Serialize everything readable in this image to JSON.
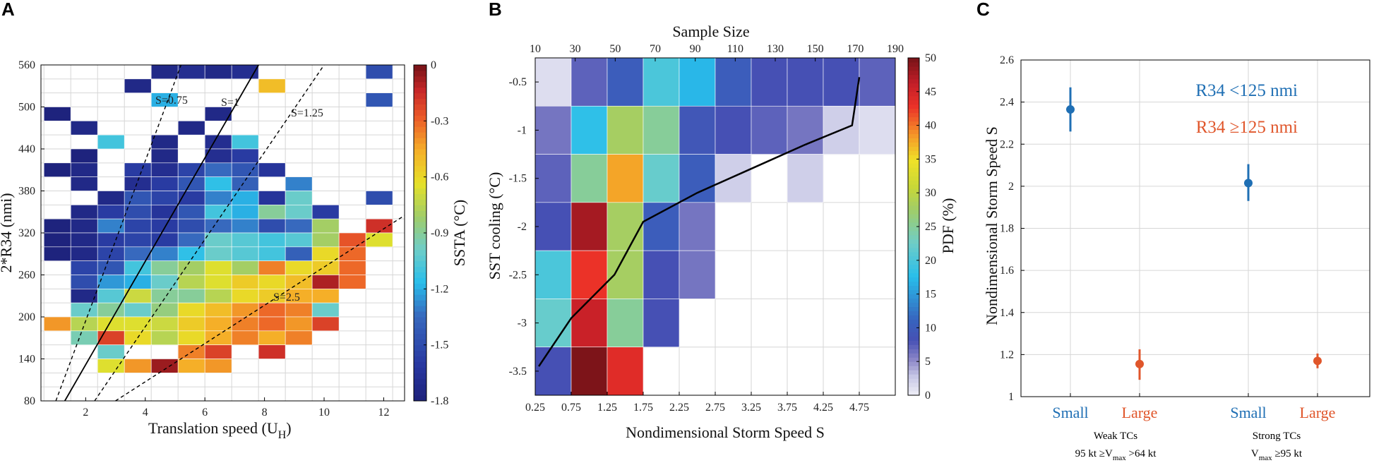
{
  "panels": {
    "a": {
      "letter": "A",
      "chart_data": {
        "type": "heatmap",
        "xlabel": "Translation speed (U",
        "xlabel_sub": "H",
        "xlabel_end": ")",
        "ylabel": "2*R34 (nmi)",
        "xlim": [
          0.5,
          12.7
        ],
        "ylim": [
          80,
          560
        ],
        "xticks": [
          2,
          4,
          6,
          8,
          10,
          12
        ],
        "yticks": [
          80,
          140,
          200,
          260,
          320,
          380,
          440,
          500,
          560
        ],
        "x_bin_width": 0.9,
        "x_bin_start": 0.6,
        "y_bin_height": 20,
        "colorbar": {
          "label": "SSTA (°C)",
          "ticks": [
            0,
            -0.3,
            -0.6,
            -0.9,
            -1.2,
            -1.5,
            -1.8
          ],
          "tick_labels": [
            "0",
            "-0.3",
            "-0.6",
            "-0.9",
            "-1.2",
            "-1.5",
            "-1.8"
          ],
          "range": [
            -1.8,
            0
          ]
        },
        "line_labels": [
          "S=0.75",
          "S=1",
          "S=1.25",
          "S=2.5"
        ],
        "cells": [
          [
            4,
            540,
            -1.75
          ],
          [
            5,
            540,
            -1.7
          ],
          [
            6,
            540,
            -1.75
          ],
          [
            7,
            540,
            -1.7
          ],
          [
            12,
            540,
            -1.5
          ],
          [
            3,
            520,
            -1.75
          ],
          [
            8,
            520,
            -0.5
          ],
          [
            4,
            500,
            -1.2
          ],
          [
            12,
            500,
            -1.45
          ],
          [
            0,
            480,
            -1.8
          ],
          [
            6,
            480,
            -1.75
          ],
          [
            1,
            460,
            -1.75
          ],
          [
            5,
            460,
            -1.75
          ],
          [
            2,
            440,
            -1.1
          ],
          [
            4,
            440,
            -1.75
          ],
          [
            6,
            440,
            -1.7
          ],
          [
            7,
            440,
            -1.1
          ],
          [
            1,
            420,
            -1.8
          ],
          [
            4,
            420,
            -1.75
          ],
          [
            6,
            420,
            -1.7
          ],
          [
            7,
            420,
            -1.6
          ],
          [
            0,
            400,
            -1.8
          ],
          [
            1,
            400,
            -1.75
          ],
          [
            3,
            400,
            -1.6
          ],
          [
            4,
            400,
            -1.7
          ],
          [
            5,
            400,
            -1.55
          ],
          [
            6,
            400,
            -1.35
          ],
          [
            7,
            400,
            -1.45
          ],
          [
            8,
            400,
            -1.65
          ],
          [
            1,
            380,
            -1.75
          ],
          [
            3,
            380,
            -1.7
          ],
          [
            4,
            380,
            -1.6
          ],
          [
            5,
            380,
            -1.45
          ],
          [
            6,
            380,
            -1.15
          ],
          [
            7,
            380,
            -1.4
          ],
          [
            9,
            380,
            -1.3
          ],
          [
            2,
            360,
            -1.75
          ],
          [
            3,
            360,
            -1.45
          ],
          [
            4,
            360,
            -1.55
          ],
          [
            5,
            360,
            -1.6
          ],
          [
            6,
            360,
            -1.3
          ],
          [
            7,
            360,
            -1.2
          ],
          [
            8,
            360,
            -1.65
          ],
          [
            9,
            360,
            -1.0
          ],
          [
            12,
            360,
            -1.5
          ],
          [
            1,
            340,
            -1.75
          ],
          [
            2,
            340,
            -1.6
          ],
          [
            3,
            340,
            -1.5
          ],
          [
            4,
            340,
            -1.65
          ],
          [
            5,
            340,
            -1.45
          ],
          [
            6,
            340,
            -1.1
          ],
          [
            7,
            340,
            -1.2
          ],
          [
            8,
            340,
            -0.9
          ],
          [
            9,
            340,
            -1.0
          ],
          [
            10,
            340,
            -1.6
          ],
          [
            0,
            320,
            -1.8
          ],
          [
            1,
            320,
            -1.75
          ],
          [
            2,
            320,
            -1.3
          ],
          [
            3,
            320,
            -1.55
          ],
          [
            4,
            320,
            -1.6
          ],
          [
            5,
            320,
            -1.5
          ],
          [
            6,
            320,
            -1.35
          ],
          [
            7,
            320,
            -1.3
          ],
          [
            8,
            320,
            -1.5
          ],
          [
            9,
            320,
            -1.35
          ],
          [
            10,
            320,
            -0.8
          ],
          [
            12,
            320,
            -0.15
          ],
          [
            0,
            300,
            -1.8
          ],
          [
            1,
            300,
            -1.75
          ],
          [
            2,
            300,
            -1.6
          ],
          [
            3,
            300,
            -1.55
          ],
          [
            4,
            300,
            -1.6
          ],
          [
            5,
            300,
            -1.35
          ],
          [
            6,
            300,
            -1.0
          ],
          [
            7,
            300,
            -1.05
          ],
          [
            8,
            300,
            -1.1
          ],
          [
            9,
            300,
            -1.05
          ],
          [
            10,
            300,
            -0.8
          ],
          [
            11,
            300,
            -0.25
          ],
          [
            12,
            300,
            -0.65
          ],
          [
            0,
            280,
            -1.8
          ],
          [
            1,
            280,
            -1.75
          ],
          [
            2,
            280,
            -1.55
          ],
          [
            3,
            280,
            -1.35
          ],
          [
            4,
            280,
            -1.3
          ],
          [
            5,
            280,
            -1.15
          ],
          [
            6,
            280,
            -1.0
          ],
          [
            7,
            280,
            -1.05
          ],
          [
            8,
            280,
            -1.1
          ],
          [
            9,
            280,
            -1.4
          ],
          [
            10,
            280,
            -0.6
          ],
          [
            11,
            280,
            -0.3
          ],
          [
            1,
            260,
            -1.55
          ],
          [
            2,
            260,
            -1.45
          ],
          [
            3,
            260,
            -1.1
          ],
          [
            4,
            260,
            -0.9
          ],
          [
            5,
            260,
            -0.8
          ],
          [
            6,
            260,
            -0.65
          ],
          [
            7,
            260,
            -0.8
          ],
          [
            8,
            260,
            -0.35
          ],
          [
            9,
            260,
            -0.6
          ],
          [
            10,
            260,
            -0.55
          ],
          [
            11,
            260,
            -0.3
          ],
          [
            1,
            240,
            -1.5
          ],
          [
            2,
            240,
            -1.25
          ],
          [
            3,
            240,
            -1.2
          ],
          [
            4,
            240,
            -1.0
          ],
          [
            5,
            240,
            -0.75
          ],
          [
            6,
            240,
            -0.65
          ],
          [
            7,
            240,
            -0.55
          ],
          [
            8,
            240,
            -0.6
          ],
          [
            9,
            240,
            -0.5
          ],
          [
            10,
            240,
            -0.08
          ],
          [
            11,
            240,
            -0.3
          ],
          [
            1,
            220,
            -1.75
          ],
          [
            2,
            220,
            -1.05
          ],
          [
            3,
            220,
            -0.7
          ],
          [
            4,
            220,
            -0.9
          ],
          [
            5,
            220,
            -0.9
          ],
          [
            6,
            220,
            -0.75
          ],
          [
            7,
            220,
            -0.6
          ],
          [
            8,
            220,
            -0.55
          ],
          [
            9,
            220,
            -0.45
          ],
          [
            10,
            220,
            -0.45
          ],
          [
            1,
            200,
            -1.0
          ],
          [
            2,
            200,
            -0.9
          ],
          [
            3,
            200,
            -1.0
          ],
          [
            4,
            200,
            -0.85
          ],
          [
            5,
            200,
            -0.6
          ],
          [
            6,
            200,
            -0.5
          ],
          [
            7,
            200,
            -0.4
          ],
          [
            8,
            200,
            -0.3
          ],
          [
            9,
            200,
            -0.35
          ],
          [
            10,
            200,
            -1.0
          ],
          [
            0,
            180,
            -0.4
          ],
          [
            1,
            180,
            -0.75
          ],
          [
            2,
            180,
            -0.65
          ],
          [
            3,
            180,
            -0.65
          ],
          [
            4,
            180,
            -0.7
          ],
          [
            5,
            180,
            -0.55
          ],
          [
            6,
            180,
            -0.45
          ],
          [
            7,
            180,
            -0.35
          ],
          [
            8,
            180,
            -0.3
          ],
          [
            9,
            180,
            -0.4
          ],
          [
            10,
            180,
            -0.2
          ],
          [
            1,
            160,
            -0.95
          ],
          [
            2,
            160,
            -0.2
          ],
          [
            3,
            160,
            -0.6
          ],
          [
            4,
            160,
            -0.75
          ],
          [
            5,
            160,
            -0.6
          ],
          [
            6,
            160,
            -0.45
          ],
          [
            7,
            160,
            -0.35
          ],
          [
            8,
            160,
            -0.45
          ],
          [
            9,
            160,
            -0.35
          ],
          [
            2,
            140,
            -1.0
          ],
          [
            5,
            140,
            -0.35
          ],
          [
            6,
            140,
            -0.2
          ],
          [
            8,
            140,
            -0.15
          ],
          [
            2,
            120,
            -0.65
          ],
          [
            3,
            120,
            -0.4
          ],
          [
            4,
            120,
            -0.05
          ],
          [
            5,
            120,
            -0.45
          ],
          [
            6,
            120,
            -0.4
          ]
        ]
      }
    },
    "b": {
      "letter": "B",
      "chart_data": {
        "type": "heatmap",
        "title_top": "Sample Size",
        "xlabel": "Nondimensional Storm Speed S",
        "ylabel": "SST cooling (°C)",
        "x_categories": [
          "0.25",
          "0.75",
          "1.25",
          "1.75",
          "2.25",
          "2.75",
          "3.25",
          "3.75",
          "4.25",
          "4.75"
        ],
        "y_categories": [
          "-0.5",
          "-1",
          "-1.5",
          "-2",
          "-2.5",
          "-3",
          "-3.5"
        ],
        "top_ticks": [
          "10",
          "30",
          "50",
          "70",
          "90",
          "110",
          "130",
          "150",
          "170",
          "190"
        ],
        "colorbar": {
          "label": "PDF (%)",
          "ticks": [
            0,
            5,
            10,
            15,
            20,
            25,
            30,
            35,
            40,
            45,
            50
          ],
          "tick_labels": [
            "0",
            "5",
            "10",
            "15",
            "20",
            "25",
            "30",
            "35",
            "40",
            "45",
            "50"
          ],
          "range": [
            0,
            50
          ]
        },
        "pdf_grid": [
          [
            1,
            7,
            10,
            20,
            17,
            10,
            8,
            8,
            8,
            7
          ],
          [
            6,
            18,
            28,
            25,
            9,
            8,
            7,
            6,
            2,
            1
          ],
          [
            7,
            25,
            38,
            22,
            10,
            2,
            0,
            2,
            0,
            0
          ],
          [
            8,
            48,
            28,
            10,
            6,
            0,
            0,
            0,
            0,
            0
          ],
          [
            20,
            43,
            28,
            8,
            6,
            0,
            0,
            0,
            0,
            0
          ],
          [
            22,
            46,
            25,
            8,
            0,
            0,
            0,
            0,
            0,
            0
          ],
          [
            8,
            50,
            44,
            0,
            0,
            0,
            0,
            0,
            0,
            0
          ]
        ],
        "mean_line": {
          "x": [
            0.3,
            0.75,
            1.35,
            1.75,
            2.5,
            3.25,
            4.0,
            4.65,
            4.75
          ],
          "y": [
            -3.45,
            -2.95,
            -2.5,
            -1.95,
            -1.65,
            -1.4,
            -1.15,
            -0.95,
            -0.45
          ]
        }
      }
    },
    "c": {
      "letter": "C",
      "chart_data": {
        "type": "scatter",
        "ylabel": "Nondimensional Storm Speed S",
        "ylim": [
          1,
          2.6
        ],
        "yticks": [
          "1",
          "1.2",
          "1.4",
          "1.6",
          "1.8",
          "2",
          "2.2",
          "2.4",
          "2.6"
        ],
        "x_categories": [
          "Small",
          "Large",
          "Small",
          "Large"
        ],
        "group_labels": [
          {
            "line1": "Weak TCs",
            "line2_a": "95 kt ≥V",
            "line2_sub": "max",
            "line2_b": " >64 kt"
          },
          {
            "line1": "Strong TCs",
            "line2_a": "V",
            "line2_sub": "max",
            "line2_b": " ≥95 kt"
          }
        ],
        "legend": [
          {
            "name": "R34 <125 nmi",
            "color": "#1f6fb4"
          },
          {
            "name": "R34 ≥125 nmi",
            "color": "#e0562b"
          }
        ],
        "series": [
          {
            "name": "R34 <125 nmi",
            "points": [
              {
                "x": 0,
                "y": 2.365,
                "lo": 2.26,
                "hi": 2.47
              },
              {
                "x": 2,
                "y": 2.015,
                "lo": 1.93,
                "hi": 2.105
              }
            ]
          },
          {
            "name": "R34 ≥125 nmi",
            "points": [
              {
                "x": 1,
                "y": 1.155,
                "lo": 1.08,
                "hi": 1.225
              },
              {
                "x": 3,
                "y": 1.17,
                "lo": 1.135,
                "hi": 1.205
              }
            ]
          }
        ]
      }
    }
  }
}
